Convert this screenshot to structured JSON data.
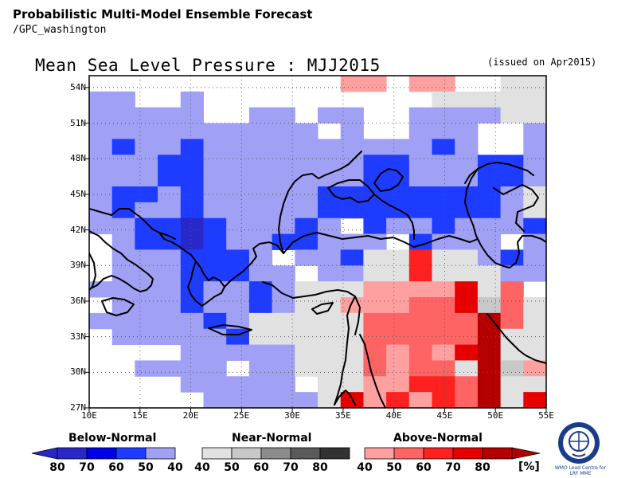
{
  "header": {
    "title": "Probabilistic Multi-Model Ensemble Forecast",
    "subtitle": "/GPC_washington"
  },
  "map": {
    "title": "Mean Sea Level Pressure : MJJ2015",
    "issued": "(issued on Apr2015)",
    "lon_range": [
      10,
      55
    ],
    "lat_range": [
      27,
      55
    ],
    "x_ticks": [
      "10E",
      "15E",
      "20E",
      "25E",
      "30E",
      "35E",
      "40E",
      "45E",
      "50E",
      "55E"
    ],
    "y_ticks": [
      "54N",
      "51N",
      "48N",
      "45N",
      "42N",
      "39N",
      "36N",
      "33N",
      "30N",
      "27N"
    ],
    "grid": "dotted",
    "colors": {
      "below": [
        "#2828c8",
        "#0000e6",
        "#1e3cff",
        "#a0a0f5"
      ],
      "near": [
        "#e1e1e1",
        "#c8c8c8",
        "#8c8c8c",
        "#5a5a5a",
        "#323232"
      ],
      "above": [
        "#ffa0a0",
        "#ff6464",
        "#ff2020",
        "#e60000",
        "#b40000"
      ]
    }
  },
  "legend": {
    "below_label": "Below-Normal",
    "near_label": "Near-Normal",
    "above_label": "Above-Normal",
    "below_ticks": [
      "80",
      "70",
      "60",
      "50",
      "40"
    ],
    "near_ticks": [
      "40",
      "50",
      "60",
      "70",
      "80"
    ],
    "above_ticks": [
      "40",
      "50",
      "60",
      "70",
      "80"
    ],
    "unit": "[%]"
  },
  "logo": {
    "text_line1": "WMO Lead Centre for",
    "text_line2": "LRF MME"
  }
}
